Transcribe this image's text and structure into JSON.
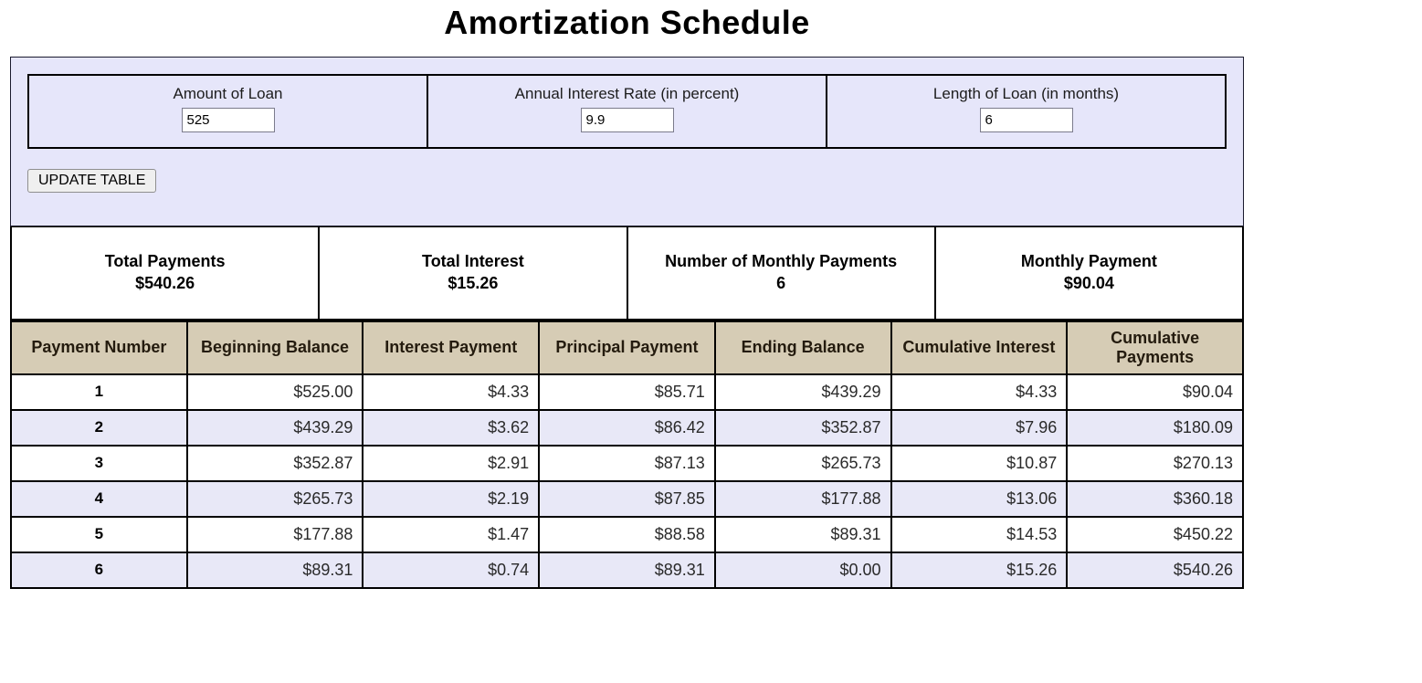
{
  "page": {
    "title": "Amortization Schedule"
  },
  "colors": {
    "panel_background": "#E6E6FA",
    "alternate_row_background": "#E8E8F7",
    "table_header_background": "#D6CCB5",
    "border": "#000000"
  },
  "inputs": {
    "fields": [
      {
        "label": "Amount of Loan",
        "value": "525"
      },
      {
        "label": "Annual Interest Rate (in percent)",
        "value": "9.9"
      },
      {
        "label": "Length of Loan (in months)",
        "value": "6"
      }
    ],
    "update_button_label": "UPDATE TABLE"
  },
  "summary": [
    {
      "label": "Total Payments",
      "value": "$540.26"
    },
    {
      "label": "Total Interest",
      "value": "$15.26"
    },
    {
      "label": "Number of Monthly Payments",
      "value": "6"
    },
    {
      "label": "Monthly Payment",
      "value": "$90.04"
    }
  ],
  "table": {
    "headers": [
      "Payment Number",
      "Beginning Balance",
      "Interest Payment",
      "Principal Payment",
      "Ending Balance",
      "Cumulative Interest",
      "Cumulative Payments"
    ],
    "rows": [
      [
        "1",
        "$525.00",
        "$4.33",
        "$85.71",
        "$439.29",
        "$4.33",
        "$90.04"
      ],
      [
        "2",
        "$439.29",
        "$3.62",
        "$86.42",
        "$352.87",
        "$7.96",
        "$180.09"
      ],
      [
        "3",
        "$352.87",
        "$2.91",
        "$87.13",
        "$265.73",
        "$10.87",
        "$270.13"
      ],
      [
        "4",
        "$265.73",
        "$2.19",
        "$87.85",
        "$177.88",
        "$13.06",
        "$360.18"
      ],
      [
        "5",
        "$177.88",
        "$1.47",
        "$88.58",
        "$89.31",
        "$14.53",
        "$450.22"
      ],
      [
        "6",
        "$89.31",
        "$0.74",
        "$89.31",
        "$0.00",
        "$15.26",
        "$540.26"
      ]
    ]
  }
}
